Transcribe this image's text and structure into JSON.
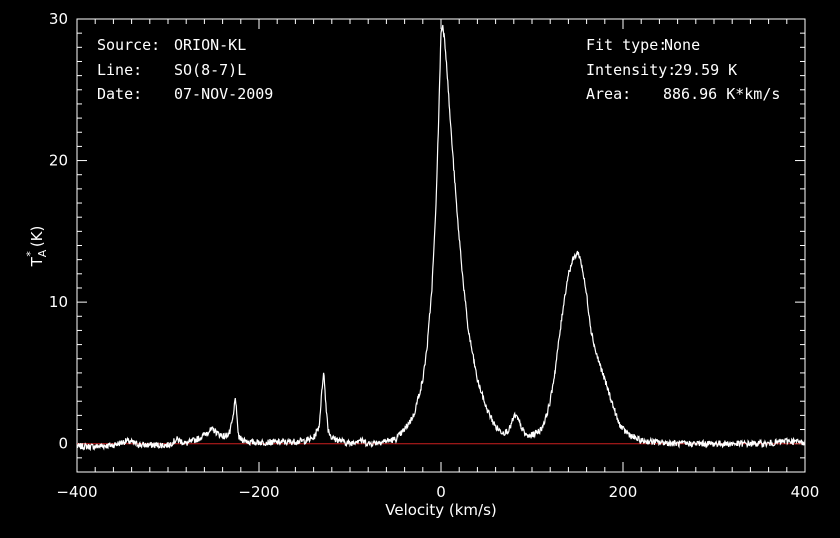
{
  "info_left": [
    {
      "key": "Source:",
      "value": "ORION-KL"
    },
    {
      "key": "Line:",
      "value": "SO(8-7)L"
    },
    {
      "key": "Date:",
      "value": "07-NOV-2009"
    }
  ],
  "info_right": [
    {
      "key": "Fit type:",
      "value": "None"
    },
    {
      "key": "Intensity:",
      "value": "29.59 K"
    },
    {
      "key": "Area:",
      "value": "886.96 K*km/s"
    }
  ],
  "chart_data": {
    "type": "line",
    "xlabel": "Velocity (km/s)",
    "ylabel": "T",
    "ylabel_sub": "A",
    "ylabel_sup": "*",
    "ylabel_unit": "(K)",
    "xlim": [
      -400,
      400
    ],
    "ylim": [
      -2,
      30
    ],
    "x_ticks": [
      -400,
      -200,
      0,
      200,
      400
    ],
    "x_tick_labels": [
      "−400",
      "−200",
      "0",
      "200",
      "400"
    ],
    "y_ticks": [
      0,
      10,
      20,
      30
    ],
    "y_tick_labels": [
      "0",
      "10",
      "20",
      "30"
    ],
    "baseline": 0,
    "baseline_color": "#cc1f1f",
    "line_color": "#ffffff",
    "grid": false,
    "series": [
      {
        "x": [
          -400,
          -380,
          -360,
          -345,
          -330,
          -300,
          -290,
          -280,
          -265,
          -255,
          -250,
          -245,
          -238,
          -232,
          -228,
          -226,
          -224,
          -222,
          -218,
          -210,
          -190,
          -170,
          -150,
          -140,
          -134,
          -131,
          -129,
          -127,
          -124,
          -120,
          -110,
          -100,
          -90,
          -80,
          -70,
          -60,
          -50,
          -40,
          -30,
          -20,
          -15,
          -10,
          -6,
          -3,
          0,
          2,
          4,
          6,
          8,
          10,
          14,
          18,
          25,
          30,
          40,
          50,
          60,
          65,
          70,
          75,
          78,
          81,
          84,
          88,
          92,
          96,
          100,
          105,
          110,
          115,
          120,
          125,
          130,
          135,
          140,
          145,
          148,
          150,
          152,
          155,
          160,
          165,
          170,
          175,
          180,
          185,
          190,
          195,
          200,
          210,
          220,
          240,
          260,
          280,
          300,
          320,
          340,
          360,
          380,
          400
        ],
        "y": [
          -0.2,
          -0.2,
          -0.1,
          0.2,
          -0.1,
          -0.1,
          0.3,
          0,
          0.4,
          0.9,
          1.0,
          0.7,
          0.5,
          0.8,
          2.0,
          3.4,
          1.5,
          0.4,
          0.3,
          0.1,
          0.1,
          0.1,
          0.2,
          0.4,
          1.2,
          3.6,
          5.2,
          3.2,
          1.0,
          0.4,
          0.2,
          0,
          0.3,
          0,
          0.1,
          0.2,
          0.3,
          1.0,
          2.0,
          4.5,
          7.0,
          11.0,
          16.0,
          22.0,
          29.0,
          29.6,
          28.5,
          27.0,
          25.0,
          23.0,
          19.5,
          16.0,
          11.0,
          8.0,
          4.5,
          2.5,
          1.2,
          0.9,
          0.8,
          1.0,
          1.5,
          2.0,
          1.8,
          1.2,
          0.7,
          0.5,
          0.6,
          0.8,
          1.0,
          1.8,
          3.0,
          5.0,
          7.5,
          10.0,
          12.0,
          13.0,
          13.3,
          13.5,
          13.3,
          12.5,
          10.5,
          8.0,
          6.5,
          5.5,
          4.5,
          3.5,
          2.5,
          1.5,
          1.0,
          0.5,
          0.2,
          0.1,
          0,
          0,
          0,
          0,
          0,
          0,
          0.2,
          0.1
        ]
      }
    ]
  }
}
